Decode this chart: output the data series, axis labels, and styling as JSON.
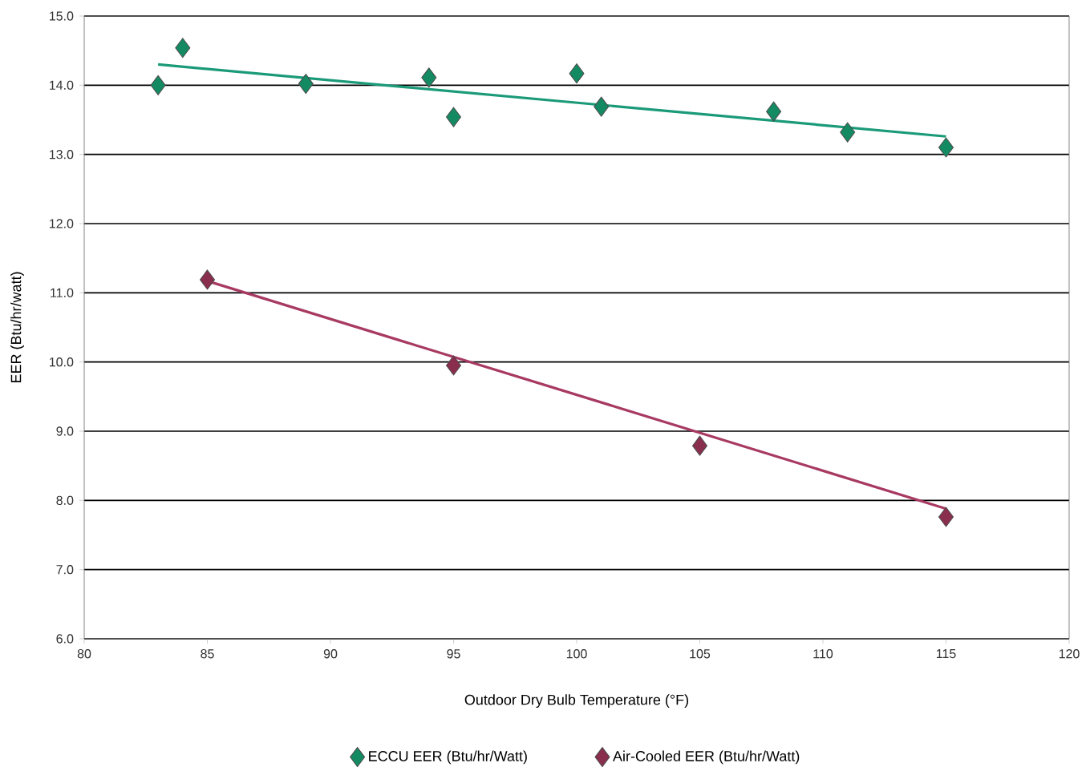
{
  "chart_data": {
    "type": "scatter",
    "xlabel": "Outdoor Dry Bulb Temperature (°F)",
    "ylabel": "EER (Btu/hr/watt)",
    "xlim": [
      80,
      120
    ],
    "xticks": [
      80,
      85,
      90,
      95,
      100,
      105,
      110,
      115,
      120
    ],
    "ylim": [
      6,
      15
    ],
    "yticks": [
      {
        "value": 6,
        "label": "6.0"
      },
      {
        "value": 7,
        "label": "7.0"
      },
      {
        "value": 8,
        "label": "8.0"
      },
      {
        "value": 9,
        "label": "9.0"
      },
      {
        "value": 10,
        "label": "10.0"
      },
      {
        "value": 11,
        "label": "11.0"
      },
      {
        "value": 12,
        "label": "12.0"
      },
      {
        "value": 13,
        "label": "13.0"
      },
      {
        "value": 14,
        "label": "14.0"
      },
      {
        "value": 15,
        "label": "15.0"
      }
    ],
    "grid": "y",
    "legend": "bottom",
    "marker": "diamond",
    "series": [
      {
        "name": "ECCU EER (Btu/hr/Watt)",
        "color": "#138a62",
        "x": [
          83,
          84,
          89,
          94,
          95,
          100,
          101,
          108,
          111,
          115
        ],
        "values": [
          14.0,
          14.54,
          14.02,
          14.11,
          13.54,
          14.17,
          13.69,
          13.62,
          13.32,
          13.1
        ]
      },
      {
        "name": "Air-Cooled EER (Btu/hr/Watt)",
        "color": "#8a2e4e",
        "x": [
          85,
          95,
          105,
          115
        ],
        "values": [
          11.19,
          9.95,
          8.79,
          7.76
        ]
      },
      {
        "type": "line",
        "marker": "none",
        "color": "#1a9a78",
        "x": [
          83,
          115
        ],
        "values": [
          14.3,
          13.26
        ]
      },
      {
        "type": "line",
        "marker": "none",
        "color": "#a83a62",
        "x": [
          85,
          115
        ],
        "values": [
          11.17,
          7.88
        ]
      }
    ]
  }
}
